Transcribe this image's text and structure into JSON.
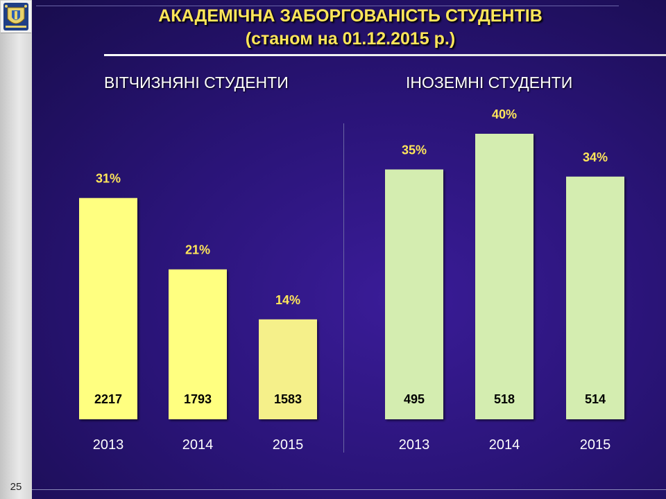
{
  "slide": {
    "title_line1": "АКАДЕМІЧНА  ЗАБОРГОВАНІСТЬ СТУДЕНТІВ",
    "title_line2": "(станом на 01.12.2015 р.)",
    "page_number": "25"
  },
  "colors": {
    "domestic_bar": "#ffff80",
    "domestic_bar_2015": "#f5f08a",
    "foreign_bar": "#d4edb0",
    "percent_label": "#ffe65a",
    "year_label": "#ffffff",
    "value_label": "#000000"
  },
  "icons": [
    "university-crest-icon"
  ],
  "chart_data": [
    {
      "type": "bar",
      "title": "ВІТЧИЗНЯНІ СТУДЕНТИ",
      "categories": [
        "2013",
        "2014",
        "2015"
      ],
      "values": [
        2217,
        1793,
        1583
      ],
      "value_labels": [
        "2217",
        "1793",
        "1583"
      ],
      "percent_values": [
        31,
        21,
        14
      ],
      "percent_labels": [
        "31%",
        "21%",
        "14%"
      ],
      "grid": false,
      "legend": "none"
    },
    {
      "type": "bar",
      "title": "ІНОЗЕМНІ СТУДЕНТИ",
      "categories": [
        "2013",
        "2014",
        "2015"
      ],
      "values": [
        495,
        518,
        514
      ],
      "value_labels": [
        "495",
        "518",
        "514"
      ],
      "percent_values": [
        35,
        40,
        34
      ],
      "percent_labels": [
        "35%",
        "40%",
        "34%"
      ],
      "grid": false,
      "legend": "none"
    }
  ]
}
